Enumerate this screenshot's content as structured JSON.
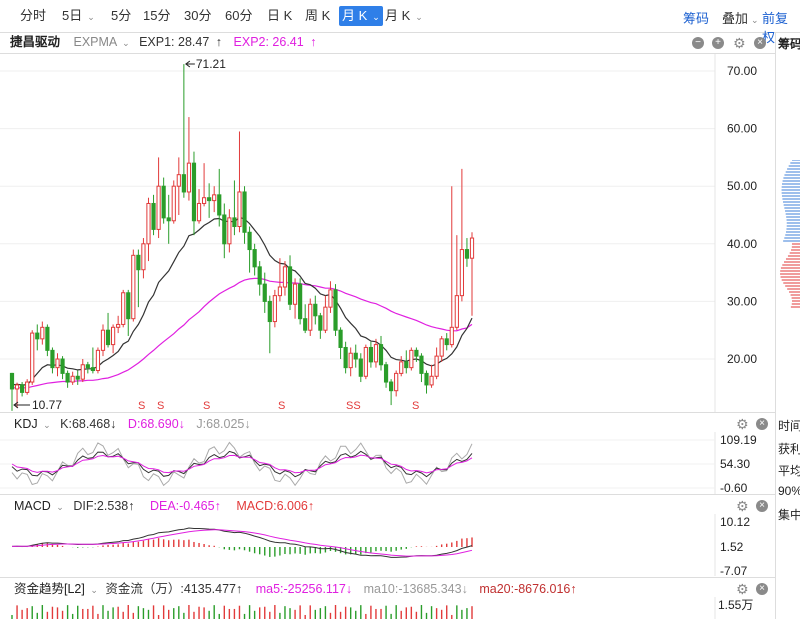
{
  "tabs": [
    {
      "label": "分时",
      "chev": false
    },
    {
      "label": "5日",
      "chev": true
    },
    {
      "label": "5分",
      "chev": false
    },
    {
      "label": "15分",
      "chev": false
    },
    {
      "label": "30分",
      "chev": false
    },
    {
      "label": "60分",
      "chev": false
    },
    {
      "label": "日 K",
      "chev": false
    },
    {
      "label": "周 K",
      "chev": false
    },
    {
      "label": "月 K",
      "chev": true,
      "active": true
    },
    {
      "label": "月 K",
      "chev": true
    }
  ],
  "toolbar_right": {
    "chouma": "筹码",
    "diejia": "叠加",
    "fuquan": "前复权"
  },
  "main": {
    "stock_name": "捷昌驱动",
    "indicator": "EXPMA",
    "exp1": "EXP1: 28.47",
    "exp1_arrow": "↑",
    "exp2": "EXP2: 26.41",
    "exp2_arrow": "↑",
    "high_label": "71.21",
    "low_label": "10.77",
    "side_tab": "筹码"
  },
  "kdj": {
    "name": "KDJ",
    "k": "K:68.468↓",
    "d": "D:68.690↓",
    "j": "J:68.025↓"
  },
  "macd": {
    "name": "MACD",
    "dif": "DIF:2.538↑",
    "dea": "DEA:-0.465↑",
    "macd": "MACD:6.006↑"
  },
  "fund": {
    "name": "资金趋势[L2]",
    "flow": "资金流（万）:4135.477↑",
    "ma5": "ma5:-25256.117↓",
    "ma10": "ma10:-13685.343↓",
    "ma20": "ma20:-8676.016↑"
  },
  "side_panel": [
    "时间",
    "获利",
    "平均",
    "90%",
    "集中"
  ],
  "colors": {
    "up": "#e23a3a",
    "down": "#2a9d2a",
    "exp1": "#333333",
    "exp2": "#e020e0",
    "accent": "#2f7fe8"
  },
  "chart_data": [
    {
      "type": "candlestick",
      "title": "捷昌驱动",
      "ylim": [
        10,
        72
      ],
      "yticks": [
        "70.00",
        "60.00",
        "50.00",
        "40.00",
        "30.00",
        "20.00"
      ],
      "high": 71.21,
      "low": 10.77,
      "candles": [
        [
          17.5,
          14.8,
          17.6,
          11.0
        ],
        [
          14.8,
          15.5,
          15.9,
          11.5
        ],
        [
          15.5,
          14.2,
          16.0,
          13.5
        ],
        [
          14.2,
          16.0,
          16.5,
          13.8
        ],
        [
          16.0,
          24.5,
          25.0,
          15.5
        ],
        [
          24.5,
          23.5,
          26.0,
          21.5
        ],
        [
          23.5,
          25.5,
          26.5,
          22.5
        ],
        [
          25.5,
          21.5,
          26.0,
          20.5
        ],
        [
          21.5,
          18.5,
          22.0,
          17.5
        ],
        [
          18.5,
          20.0,
          21.0,
          17.0
        ],
        [
          20.0,
          17.5,
          20.5,
          16.5
        ],
        [
          17.5,
          16.0,
          18.0,
          15.0
        ],
        [
          16.0,
          17.0,
          17.8,
          15.5
        ],
        [
          17.0,
          16.5,
          18.0,
          15.5
        ],
        [
          16.5,
          19.0,
          20.0,
          16.0
        ],
        [
          19.0,
          18.5,
          19.5,
          17.5
        ],
        [
          18.5,
          18.0,
          22.0,
          17.5
        ],
        [
          18.0,
          21.5,
          22.0,
          17.5
        ],
        [
          21.5,
          25.0,
          26.0,
          20.5
        ],
        [
          25.0,
          22.5,
          28.0,
          22.0
        ],
        [
          22.5,
          25.5,
          26.0,
          21.0
        ],
        [
          25.5,
          26.0,
          27.5,
          24.5
        ],
        [
          26.0,
          31.5,
          32.0,
          25.5
        ],
        [
          31.5,
          27.0,
          32.0,
          24.0
        ],
        [
          27.0,
          38.0,
          39.0,
          26.5
        ],
        [
          38.0,
          35.5,
          39.0,
          29.0
        ],
        [
          35.5,
          40.0,
          41.0,
          34.0
        ],
        [
          40.0,
          47.0,
          48.0,
          37.0
        ],
        [
          47.0,
          42.5,
          48.5,
          41.5
        ],
        [
          42.5,
          50.0,
          55.0,
          41.0
        ],
        [
          50.0,
          44.5,
          51.5,
          43.5
        ],
        [
          44.5,
          44.0,
          48.5,
          40.0
        ],
        [
          44.0,
          50.0,
          51.0,
          43.5
        ],
        [
          50.0,
          52.0,
          55.0,
          45.0
        ],
        [
          52.0,
          49.0,
          71.2,
          48.0
        ],
        [
          49.0,
          54.0,
          62.0,
          47.5
        ],
        [
          54.0,
          44.0,
          56.0,
          41.5
        ],
        [
          44.0,
          47.0,
          49.5,
          43.5
        ],
        [
          47.0,
          48.0,
          54.0,
          46.5
        ],
        [
          48.0,
          47.5,
          50.5,
          44.5
        ],
        [
          47.5,
          48.5,
          50.0,
          45.5
        ],
        [
          48.5,
          45.0,
          53.0,
          43.0
        ],
        [
          45.0,
          40.0,
          47.0,
          37.5
        ],
        [
          40.0,
          44.5,
          46.0,
          38.5
        ],
        [
          44.5,
          43.0,
          51.0,
          41.5
        ],
        [
          43.0,
          49.0,
          59.5,
          42.0
        ],
        [
          49.0,
          42.0,
          50.0,
          40.0
        ],
        [
          42.0,
          39.0,
          43.0,
          35.0
        ],
        [
          39.0,
          36.0,
          40.0,
          34.5
        ],
        [
          36.0,
          33.0,
          37.0,
          31.0
        ],
        [
          33.0,
          30.0,
          35.0,
          28.0
        ],
        [
          30.0,
          26.5,
          31.0,
          21.0
        ],
        [
          26.5,
          31.0,
          32.0,
          25.5
        ],
        [
          31.0,
          32.5,
          37.5,
          30.0
        ],
        [
          32.5,
          36.0,
          37.0,
          31.0
        ],
        [
          36.0,
          29.5,
          38.0,
          28.5
        ],
        [
          29.5,
          33.0,
          34.0,
          27.0
        ],
        [
          33.0,
          27.0,
          34.0,
          26.0
        ],
        [
          27.0,
          25.0,
          29.5,
          24.5
        ],
        [
          25.0,
          29.5,
          30.5,
          24.0
        ],
        [
          29.5,
          27.5,
          31.0,
          26.0
        ],
        [
          27.5,
          25.0,
          28.0,
          23.5
        ],
        [
          25.0,
          29.0,
          31.0,
          24.5
        ],
        [
          29.0,
          32.0,
          33.5,
          28.0
        ],
        [
          32.0,
          25.0,
          33.0,
          24.0
        ],
        [
          25.0,
          22.0,
          25.5,
          20.0
        ],
        [
          22.0,
          18.5,
          23.0,
          17.5
        ],
        [
          18.5,
          21.0,
          22.0,
          17.0
        ],
        [
          21.0,
          20.0,
          22.5,
          18.5
        ],
        [
          20.0,
          17.0,
          21.0,
          16.0
        ],
        [
          17.0,
          22.0,
          22.5,
          16.5
        ],
        [
          22.0,
          19.5,
          23.0,
          18.5
        ],
        [
          19.5,
          22.5,
          23.5,
          18.5
        ],
        [
          22.5,
          19.0,
          24.0,
          18.0
        ],
        [
          19.0,
          16.0,
          19.5,
          15.0
        ],
        [
          16.0,
          14.5,
          16.5,
          12.0
        ],
        [
          14.5,
          17.5,
          18.0,
          13.5
        ],
        [
          17.5,
          19.5,
          20.5,
          17.0
        ],
        [
          19.5,
          18.5,
          21.5,
          17.5
        ],
        [
          18.5,
          21.5,
          22.0,
          18.0
        ],
        [
          21.5,
          20.5,
          22.0,
          19.5
        ],
        [
          20.5,
          17.5,
          21.0,
          16.0
        ],
        [
          17.5,
          15.5,
          18.0,
          14.0
        ],
        [
          15.5,
          17.0,
          19.0,
          15.0
        ],
        [
          17.0,
          20.5,
          22.0,
          16.5
        ],
        [
          20.5,
          23.5,
          24.0,
          19.5
        ],
        [
          23.5,
          22.5,
          24.5,
          21.5
        ],
        [
          22.5,
          25.5,
          50.0,
          22.0
        ],
        [
          25.5,
          31.0,
          41.5,
          25.0
        ],
        [
          31.0,
          39.0,
          53.0,
          30.0
        ],
        [
          39.0,
          37.5,
          41.0,
          36.0
        ],
        [
          37.5,
          41.0,
          42.0,
          27.5
        ]
      ],
      "exp1": [
        15.5,
        15.6,
        15.5,
        15.5,
        16.5,
        17.5,
        18.5,
        19.0,
        18.9,
        19.0,
        18.8,
        18.4,
        18.3,
        18.1,
        18.2,
        18.3,
        18.3,
        18.7,
        19.5,
        20.0,
        20.6,
        21.3,
        22.6,
        23.1,
        24.8,
        26.0,
        27.7,
        29.9,
        31.1,
        33.3,
        34.3,
        35.3,
        36.9,
        38.5,
        39.6,
        41.4,
        41.7,
        42.4,
        43.2,
        43.7,
        44.3,
        44.4,
        43.9,
        43.9,
        43.8,
        44.6,
        44.3,
        43.5,
        42.4,
        41.3,
        39.8,
        38.0,
        37.1,
        36.6,
        36.5,
        35.6,
        35.3,
        34.4,
        33.1,
        32.9,
        32.3,
        31.3,
        31.0,
        31.2,
        30.2,
        28.8,
        27.2,
        26.2,
        25.3,
        24.0,
        23.7,
        23.1,
        23.0,
        22.4,
        21.5,
        20.3,
        19.9,
        19.8,
        19.6,
        19.9,
        20.0,
        19.7,
        19.1,
        18.8,
        19.1,
        19.7,
        20.1,
        20.9,
        22.1,
        24.1,
        25.3,
        27.1
      ],
      "exp2": [
        15.0,
        15.0,
        15.0,
        15.0,
        15.2,
        15.4,
        15.6,
        15.8,
        15.9,
        16.0,
        16.1,
        16.1,
        16.1,
        16.2,
        16.2,
        16.3,
        16.3,
        16.4,
        16.6,
        16.7,
        17.0,
        17.3,
        17.7,
        18.1,
        18.7,
        19.3,
        20.0,
        20.8,
        21.5,
        22.3,
        23.0,
        23.7,
        24.4,
        25.2,
        25.9,
        26.8,
        27.5,
        28.2,
        29.1,
        29.9,
        30.6,
        31.3,
        31.8,
        32.3,
        32.7,
        33.3,
        33.7,
        33.9,
        34.0,
        34.0,
        33.8,
        33.5,
        33.4,
        33.3,
        33.3,
        33.2,
        33.2,
        33.1,
        32.9,
        32.8,
        32.7,
        32.5,
        32.3,
        32.3,
        32.1,
        31.8,
        31.4,
        31.1,
        30.8,
        30.4,
        30.1,
        29.8,
        29.6,
        29.2,
        28.8,
        28.3,
        27.9,
        27.6,
        27.3,
        27.0,
        26.7,
        26.3,
        25.9,
        25.6,
        25.4,
        25.2,
        25.0,
        24.9,
        24.9,
        25.2,
        25.4,
        26.0
      ],
      "signals": [
        "S",
        "S",
        "S",
        "S",
        "S",
        "SS",
        "S"
      ]
    },
    {
      "type": "line",
      "title": "KDJ",
      "yticks": [
        "109.19",
        "54.30",
        "-0.60"
      ],
      "series": [
        {
          "name": "K"
        },
        {
          "name": "D"
        },
        {
          "name": "J"
        }
      ]
    },
    {
      "type": "bar",
      "title": "MACD",
      "yticks": [
        "10.12",
        "1.52",
        "-7.07"
      ],
      "series": [
        {
          "name": "DIF"
        },
        {
          "name": "DEA"
        },
        {
          "name": "MACD"
        }
      ]
    },
    {
      "type": "bar",
      "title": "资金趋势[L2]",
      "yticks": [
        "1.55万"
      ]
    }
  ]
}
